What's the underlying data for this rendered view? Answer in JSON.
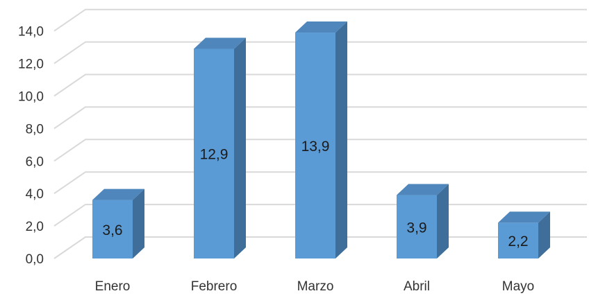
{
  "chart_data": {
    "type": "bar",
    "title": "",
    "xlabel": "",
    "ylabel": "",
    "categories": [
      "Enero",
      "Febrero",
      "Marzo",
      "Abril",
      "Mayo"
    ],
    "values": [
      3.6,
      12.9,
      13.9,
      3.9,
      2.2
    ],
    "value_labels": [
      "3,6",
      "12,9",
      "13,9",
      "3,9",
      "2,2"
    ],
    "ylim": [
      0,
      14
    ],
    "yticks": [
      0,
      2,
      4,
      6,
      8,
      10,
      12,
      14
    ],
    "ytick_labels": [
      "0,0",
      "2,0",
      "4,0",
      "6,0",
      "8,0",
      "10,0",
      "12,0",
      "14,0"
    ],
    "grid": true,
    "legend": "none",
    "style": "3d-column",
    "colors": {
      "bar_front": "#5B9BD5",
      "bar_side": "#3E6E99",
      "bar_top": "#4F86BB",
      "grid": "#D9D9D9"
    }
  }
}
